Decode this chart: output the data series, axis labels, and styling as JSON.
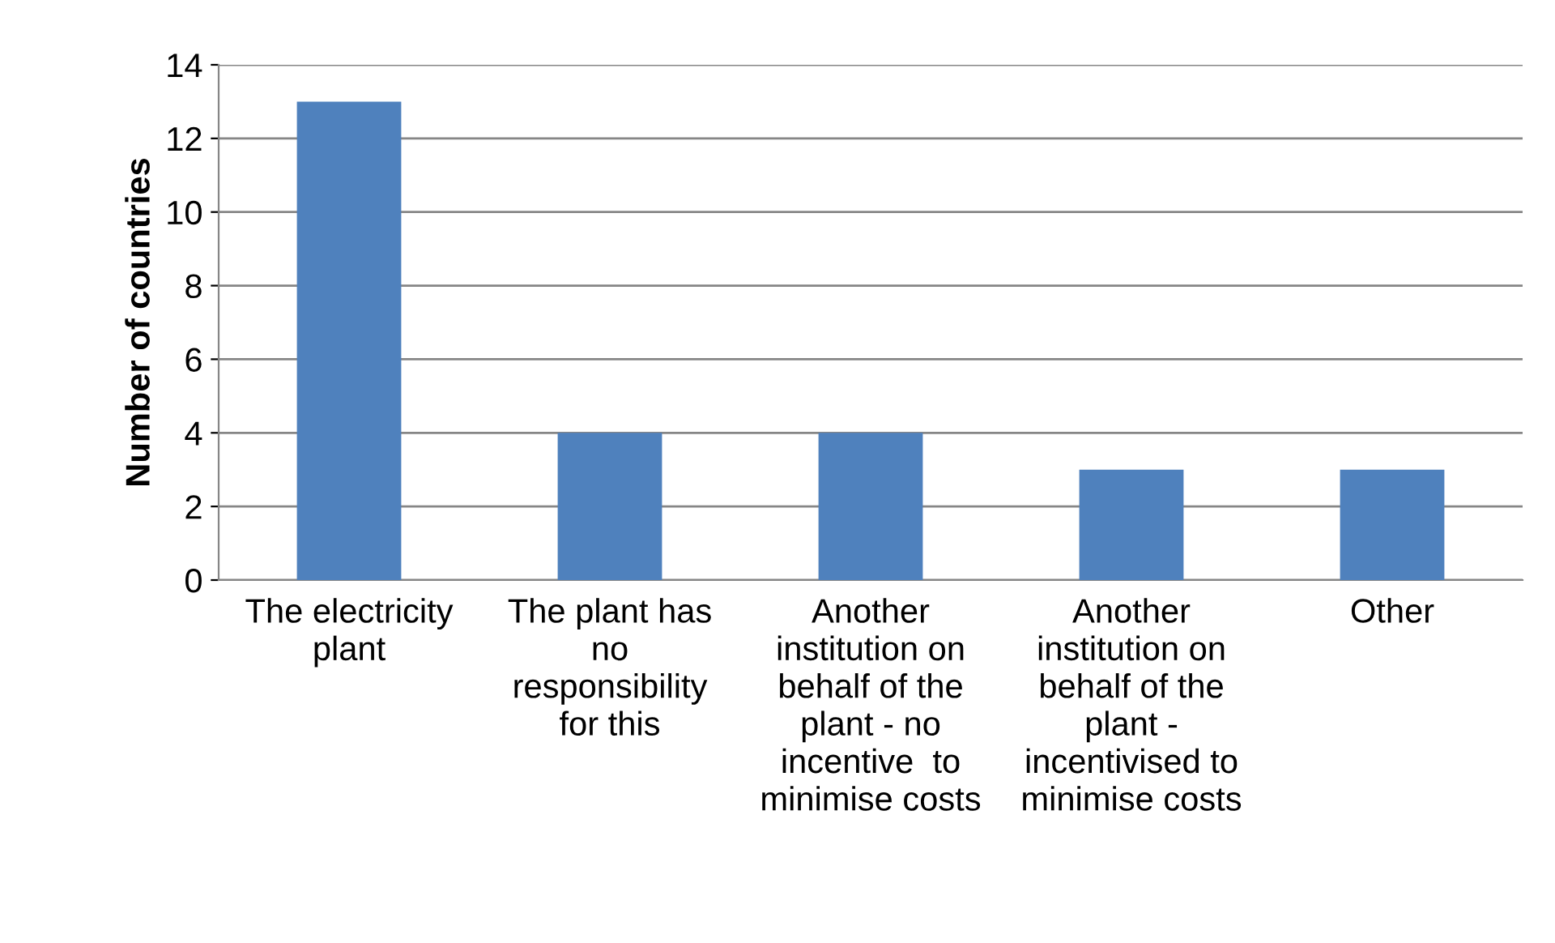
{
  "chart_data": {
    "type": "bar",
    "ylabel": "Number of countries",
    "categories": [
      "The electricity\nplant",
      "The plant has\nno\nresponsibility\nfor this",
      "Another\ninstitution on\nbehalf of the\nplant - no\nincentive  to\nminimise costs",
      "Another\ninstitution on\nbehalf of the\nplant -\nincentivised to\nminimise costs",
      "Other"
    ],
    "values": [
      13,
      4,
      4,
      3,
      3
    ],
    "color": "#4f81bd",
    "ylim": [
      0,
      14
    ],
    "yticks": [
      0,
      2,
      4,
      6,
      8,
      10,
      12,
      14
    ],
    "grid": "y",
    "legend": false
  }
}
